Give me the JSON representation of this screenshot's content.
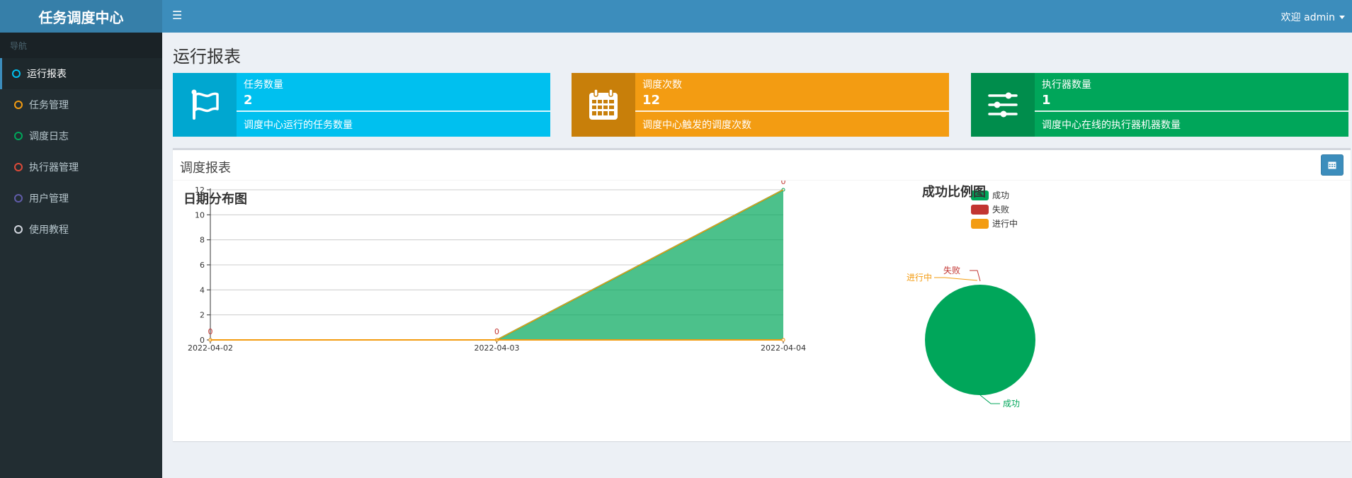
{
  "app": {
    "title": "任务调度中心"
  },
  "header": {
    "user_label": "欢迎 admin"
  },
  "sidebar": {
    "header": "导航",
    "items": [
      {
        "label": "运行报表",
        "color": "#00c0ef"
      },
      {
        "label": "任务管理",
        "color": "#f39c12"
      },
      {
        "label": "调度日志",
        "color": "#00a65a"
      },
      {
        "label": "执行器管理",
        "color": "#dd4b39"
      },
      {
        "label": "用户管理",
        "color": "#605ca8"
      },
      {
        "label": "使用教程",
        "color": "#d2d6de"
      }
    ]
  },
  "page": {
    "title": "运行报表"
  },
  "stats": [
    {
      "label": "任务数量",
      "value": "2",
      "desc": "调度中心运行的任务数量",
      "icon": "flag-icon",
      "color": "#00c0ef",
      "dark": "#00a7d0"
    },
    {
      "label": "调度次数",
      "value": "12",
      "desc": "调度中心触发的调度次数",
      "icon": "calendar-icon",
      "color": "#f39c12",
      "dark": "#c87f0a"
    },
    {
      "label": "执行器数量",
      "value": "1",
      "desc": "调度中心在线的执行器机器数量",
      "icon": "sliders-icon",
      "color": "#00a65a",
      "dark": "#008d4c"
    }
  ],
  "report": {
    "title": "调度报表"
  },
  "chart_data": [
    {
      "type": "area",
      "title": "日期分布图",
      "x": [
        "2022-04-02",
        "2022-04-03",
        "2022-04-04"
      ],
      "series": [
        {
          "name": "成功",
          "values": [
            0,
            0,
            12
          ],
          "color": "#00a65a"
        },
        {
          "name": "失败",
          "values": [
            0,
            0,
            0
          ],
          "color": "#c23531"
        },
        {
          "name": "进行中",
          "values": [
            0,
            0,
            0
          ],
          "color": "#f39c12"
        }
      ],
      "data_labels": [
        "0",
        "0",
        "0"
      ],
      "ylim": [
        0,
        12
      ],
      "yticks": [
        "0",
        "2",
        "4",
        "6",
        "8",
        "10",
        "12"
      ],
      "legend": "top-center"
    },
    {
      "type": "pie",
      "title": "成功比例图",
      "slices": [
        {
          "name": "成功",
          "value": 12,
          "color": "#00a65a"
        },
        {
          "name": "失败",
          "value": 0,
          "color": "#c23531"
        },
        {
          "name": "进行中",
          "value": 0,
          "color": "#f39c12"
        }
      ],
      "legend": "left"
    }
  ]
}
